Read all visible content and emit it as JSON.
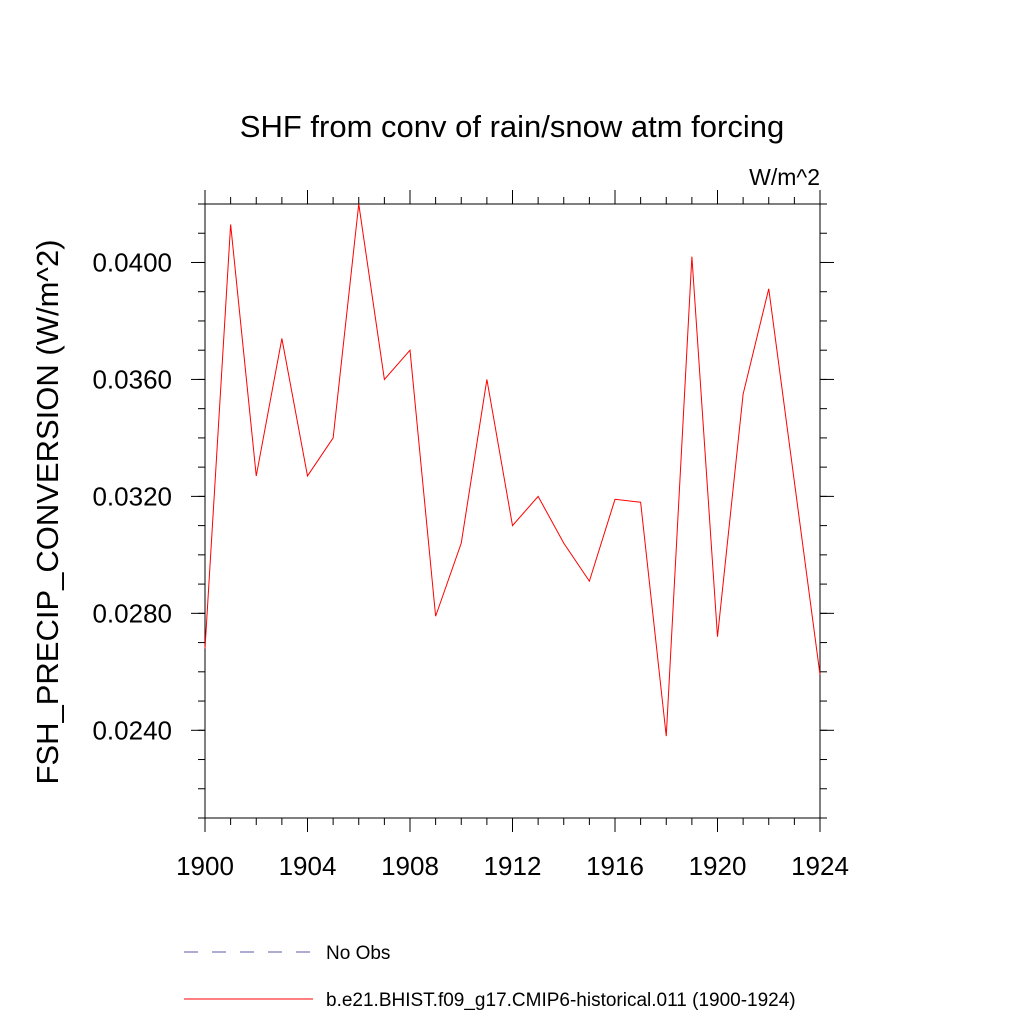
{
  "chart_data": {
    "type": "line",
    "title": "SHF from conv of rain/snow atm forcing",
    "units_label": "W/m^2",
    "ylabel": "FSH_PRECIP_CONVERSION  (W/m^2)",
    "xlabel": "",
    "xlim": [
      1900,
      1924
    ],
    "ylim": [
      0.021,
      0.042
    ],
    "x_ticks": [
      1900,
      1904,
      1908,
      1912,
      1916,
      1920,
      1924
    ],
    "x_tick_labels": [
      "1900",
      "1904",
      "1908",
      "1912",
      "1916",
      "1920",
      "1924"
    ],
    "y_ticks": [
      0.024,
      0.028,
      0.032,
      0.036,
      0.04
    ],
    "y_tick_labels": [
      "0.0240",
      "0.0280",
      "0.0320",
      "0.0360",
      "0.0400"
    ],
    "grid": false,
    "legend_position": "bottom",
    "series": [
      {
        "name": "b.e21.BHIST.f09_g17.CMIP6-historical.011 (1900-1924)",
        "color": "#ff0000",
        "style": "solid",
        "x": [
          1900,
          1901,
          1902,
          1903,
          1904,
          1905,
          1906,
          1907,
          1908,
          1909,
          1910,
          1911,
          1912,
          1913,
          1914,
          1915,
          1916,
          1917,
          1918,
          1919,
          1920,
          1921,
          1922,
          1923,
          1924
        ],
        "y": [
          0.0268,
          0.0413,
          0.0327,
          0.0374,
          0.0327,
          0.034,
          0.042,
          0.036,
          0.037,
          0.0279,
          0.0304,
          0.036,
          0.031,
          0.032,
          0.0304,
          0.0291,
          0.0319,
          0.0318,
          0.0238,
          0.0402,
          0.0272,
          0.0355,
          0.0391,
          0.0325,
          0.0259
        ]
      },
      {
        "name": "No Obs",
        "color": "#5a5aa8",
        "style": "dashed",
        "x": [],
        "y": []
      }
    ]
  }
}
